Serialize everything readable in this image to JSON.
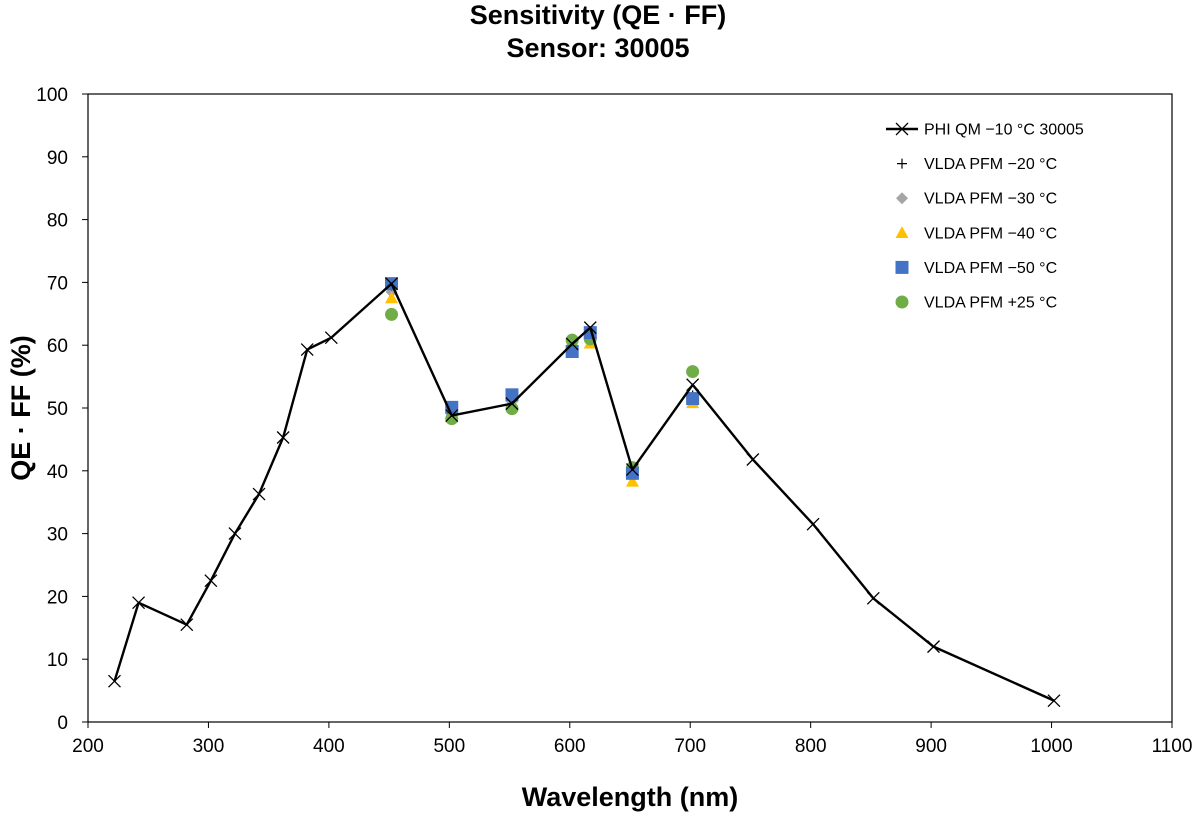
{
  "chart_data": {
    "type": "scatter",
    "title": "Sensitivity (QE · FF)",
    "subtitle": "Sensor: 30005",
    "xlabel": "Wavelength (nm)",
    "ylabel": "QE · FF (%)",
    "xlim": [
      200,
      1100
    ],
    "ylim": [
      0,
      100
    ],
    "x_ticks": [
      200,
      300,
      400,
      500,
      600,
      700,
      800,
      900,
      1000,
      1100
    ],
    "y_ticks": [
      0,
      10,
      20,
      30,
      40,
      50,
      60,
      70,
      80,
      90,
      100
    ],
    "grid": false,
    "legend_position": "top-right",
    "series": [
      {
        "name": "PHI QM −10 °C 30005",
        "marker": "x",
        "line": true,
        "color": "#000000",
        "points": [
          [
            222,
            6.5
          ],
          [
            242,
            19
          ],
          [
            282,
            15.5
          ],
          [
            302,
            22.5
          ],
          [
            322,
            30
          ],
          [
            342,
            36.3
          ],
          [
            362,
            45.3
          ],
          [
            382,
            59.3
          ],
          [
            402,
            61.2
          ],
          [
            452,
            69.8
          ],
          [
            502,
            48.8
          ],
          [
            552,
            50.7
          ],
          [
            602,
            60.2
          ],
          [
            617,
            62.8
          ],
          [
            652,
            40.2
          ],
          [
            702,
            53.7
          ],
          [
            752,
            41.8
          ],
          [
            802,
            31.5
          ],
          [
            852,
            19.7
          ],
          [
            902,
            12
          ],
          [
            1002,
            3.4
          ]
        ]
      },
      {
        "name": "VLDA PFM −20 °C",
        "marker": "plus",
        "line": false,
        "color": "#000000",
        "points": [
          [
            452,
            69.5
          ],
          [
            502,
            50
          ],
          [
            552,
            51.5
          ],
          [
            602,
            60.5
          ],
          [
            617,
            61.5
          ],
          [
            652,
            39.5
          ],
          [
            702,
            52
          ]
        ]
      },
      {
        "name": "VLDA PFM −30 °C",
        "marker": "diamond",
        "line": false,
        "color": "#a5a5a5",
        "points": [
          [
            452,
            68.5
          ],
          [
            502,
            49
          ],
          [
            552,
            51
          ],
          [
            602,
            60
          ],
          [
            617,
            61
          ],
          [
            652,
            39
          ],
          [
            702,
            51.5
          ]
        ]
      },
      {
        "name": "VLDA PFM −40 °C",
        "marker": "triangle",
        "line": false,
        "color": "#ffc000",
        "points": [
          [
            452,
            67.5
          ],
          [
            502,
            48.5
          ],
          [
            552,
            50.3
          ],
          [
            602,
            59.8
          ],
          [
            617,
            60.3
          ],
          [
            652,
            38.3
          ],
          [
            702,
            50.8
          ]
        ]
      },
      {
        "name": "VLDA PFM −50 °C",
        "marker": "square",
        "line": false,
        "color": "#4472c4",
        "points": [
          [
            452,
            69.8
          ],
          [
            502,
            50.1
          ],
          [
            552,
            52.1
          ],
          [
            602,
            59
          ],
          [
            617,
            62
          ],
          [
            652,
            39.6
          ],
          [
            702,
            51.5
          ]
        ]
      },
      {
        "name": "VLDA PFM +25 °C",
        "marker": "circle",
        "line": false,
        "color": "#70ad47",
        "points": [
          [
            452,
            64.9
          ],
          [
            502,
            48.3
          ],
          [
            552,
            49.9
          ],
          [
            602,
            60.8
          ],
          [
            617,
            61
          ],
          [
            652,
            40.5
          ],
          [
            702,
            55.8
          ]
        ]
      }
    ]
  }
}
